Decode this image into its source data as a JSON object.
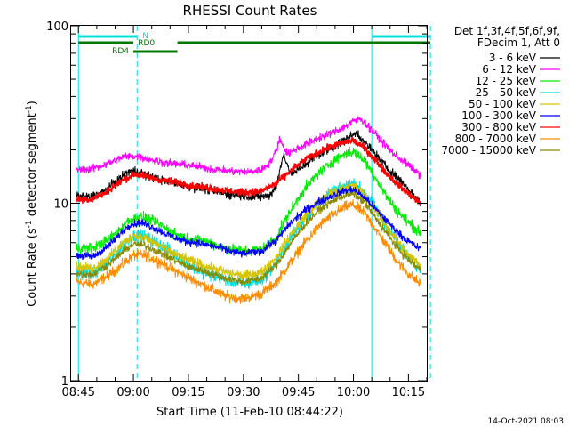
{
  "chart_data": {
    "type": "line",
    "title": "RHESSI Count Rates",
    "xlabel": "Start Time (11-Feb-10 08:44:22)",
    "ylabel": "Count Rate (s",
    "ylabel_sup1": "-1",
    "ylabel_mid": " detector segment",
    "ylabel_sup2": "-1",
    "ylabel_end": ")",
    "yscale": "log",
    "ylim": [
      1,
      100
    ],
    "xlim_minutes": [
      -2,
      95
    ],
    "x_ticks": [
      {
        "t": 0,
        "label": "08:45"
      },
      {
        "t": 15,
        "label": "09:00"
      },
      {
        "t": 30,
        "label": "09:15"
      },
      {
        "t": 45,
        "label": "09:30"
      },
      {
        "t": 60,
        "label": "09:45"
      },
      {
        "t": 75,
        "label": "10:00"
      },
      {
        "t": 90,
        "label": "10:15"
      }
    ],
    "y_ticks": [
      {
        "v": 1,
        "label": "1"
      },
      {
        "v": 10,
        "label": "10"
      },
      {
        "v": 100,
        "label": "100"
      }
    ],
    "legend_header_1": "Det 1f,3f,4f,5f,6f,9f,",
    "legend_header_2": "FDecim 1, Att 0",
    "timestamp": "14-Oct-2021 08:03",
    "series": [
      {
        "name": "3 - 6 keV",
        "color": "#000000",
        "noise": 0.05,
        "points": [
          [
            -0.5,
            11
          ],
          [
            3,
            10.8
          ],
          [
            7,
            11.6
          ],
          [
            10,
            13.2
          ],
          [
            14,
            15.2
          ],
          [
            17,
            15
          ],
          [
            20,
            14
          ],
          [
            24,
            13.3
          ],
          [
            27,
            13
          ],
          [
            30,
            12.4
          ],
          [
            35,
            12
          ],
          [
            40,
            11.3
          ],
          [
            45,
            11
          ],
          [
            48,
            10.8
          ],
          [
            52,
            11
          ],
          [
            54,
            12.5
          ],
          [
            56,
            19
          ],
          [
            58,
            14.5
          ],
          [
            61,
            16
          ],
          [
            64,
            18
          ],
          [
            67,
            19.5
          ],
          [
            70,
            21
          ],
          [
            73,
            23
          ],
          [
            76,
            25
          ],
          [
            78,
            22
          ],
          [
            81,
            19
          ],
          [
            84,
            16
          ],
          [
            87,
            14
          ],
          [
            90,
            12
          ],
          [
            93.3,
            10
          ]
        ]
      },
      {
        "name": "6 - 12 keV",
        "color": "#ff00ff",
        "noise": 0.045,
        "points": [
          [
            -0.5,
            15.5
          ],
          [
            3,
            15.5
          ],
          [
            6,
            16.2
          ],
          [
            9,
            17
          ],
          [
            12,
            18.2
          ],
          [
            15,
            18.5
          ],
          [
            19,
            17.8
          ],
          [
            23,
            17
          ],
          [
            27,
            16.6
          ],
          [
            31,
            16.3
          ],
          [
            36,
            15.6
          ],
          [
            41,
            15.2
          ],
          [
            46,
            15
          ],
          [
            50,
            15.4
          ],
          [
            53,
            17.8
          ],
          [
            55,
            23
          ],
          [
            57,
            19
          ],
          [
            61,
            21
          ],
          [
            65,
            23
          ],
          [
            69,
            25
          ],
          [
            72,
            26.5
          ],
          [
            75,
            29
          ],
          [
            77,
            30
          ],
          [
            80,
            26
          ],
          [
            83,
            22
          ],
          [
            86,
            19
          ],
          [
            89,
            17
          ],
          [
            93.3,
            14.5
          ]
        ]
      },
      {
        "name": "12 - 25 keV",
        "color": "#00ee00",
        "noise": 0.06,
        "points": [
          [
            -0.5,
            5.6
          ],
          [
            4,
            5.6
          ],
          [
            8,
            6.2
          ],
          [
            11,
            7
          ],
          [
            13,
            7.8
          ],
          [
            16,
            8.4
          ],
          [
            19,
            8.2
          ],
          [
            22,
            7.6
          ],
          [
            26,
            6.8
          ],
          [
            30,
            6.3
          ],
          [
            35,
            6.1
          ],
          [
            40,
            5.6
          ],
          [
            45,
            5.4
          ],
          [
            50,
            5.5
          ],
          [
            54,
            6.4
          ],
          [
            57,
            8.5
          ],
          [
            61,
            11.5
          ],
          [
            65,
            14.5
          ],
          [
            69,
            17
          ],
          [
            72,
            18.8
          ],
          [
            75,
            19.5
          ],
          [
            78,
            17.5
          ],
          [
            81,
            14
          ],
          [
            84,
            11
          ],
          [
            87,
            9
          ],
          [
            90,
            7.8
          ],
          [
            93.3,
            6.8
          ]
        ]
      },
      {
        "name": "25 - 50 keV",
        "color": "#00e0e0",
        "noise": 0.07,
        "points": [
          [
            -0.5,
            4.1
          ],
          [
            4,
            4.0
          ],
          [
            8,
            4.6
          ],
          [
            12,
            5.7
          ],
          [
            15,
            6.6
          ],
          [
            18,
            6.5
          ],
          [
            22,
            5.9
          ],
          [
            26,
            5.2
          ],
          [
            30,
            4.5
          ],
          [
            35,
            4.0
          ],
          [
            40,
            3.7
          ],
          [
            45,
            3.5
          ],
          [
            50,
            3.7
          ],
          [
            54,
            4.6
          ],
          [
            58,
            6.4
          ],
          [
            62,
            8.4
          ],
          [
            66,
            10.3
          ],
          [
            70,
            11.8
          ],
          [
            73,
            12.6
          ],
          [
            75,
            13
          ],
          [
            78,
            11.6
          ],
          [
            81,
            9.4
          ],
          [
            84,
            7.4
          ],
          [
            87,
            6
          ],
          [
            90,
            5
          ],
          [
            93.3,
            4.3
          ]
        ]
      },
      {
        "name": "50 - 100 keV",
        "color": "#d6c400",
        "noise": 0.055,
        "points": [
          [
            -0.5,
            4.4
          ],
          [
            4,
            4.3
          ],
          [
            8,
            4.9
          ],
          [
            12,
            5.9
          ],
          [
            15,
            6.6
          ],
          [
            18,
            6.4
          ],
          [
            22,
            5.8
          ],
          [
            26,
            5.2
          ],
          [
            30,
            4.8
          ],
          [
            35,
            4.4
          ],
          [
            40,
            4.1
          ],
          [
            45,
            3.9
          ],
          [
            50,
            4.1
          ],
          [
            54,
            5
          ],
          [
            58,
            6.7
          ],
          [
            62,
            8.6
          ],
          [
            66,
            10.4
          ],
          [
            70,
            11.7
          ],
          [
            73,
            12.3
          ],
          [
            75,
            12.5
          ],
          [
            78,
            11.2
          ],
          [
            81,
            9.2
          ],
          [
            84,
            7.4
          ],
          [
            87,
            6.1
          ],
          [
            90,
            5.1
          ],
          [
            93.3,
            4.5
          ]
        ]
      },
      {
        "name": "100 - 300 keV",
        "color": "#0000ff",
        "noise": 0.045,
        "points": [
          [
            -0.5,
            5.1
          ],
          [
            4,
            5.0
          ],
          [
            8,
            5.7
          ],
          [
            11,
            6.6
          ],
          [
            14,
            7.6
          ],
          [
            17,
            7.8
          ],
          [
            20,
            7.4
          ],
          [
            24,
            6.7
          ],
          [
            28,
            6.2
          ],
          [
            32,
            6.0
          ],
          [
            36,
            5.8
          ],
          [
            41,
            5.4
          ],
          [
            45,
            5.2
          ],
          [
            50,
            5.4
          ],
          [
            54,
            6.2
          ],
          [
            58,
            7.8
          ],
          [
            62,
            9.2
          ],
          [
            66,
            10.3
          ],
          [
            70,
            11.2
          ],
          [
            73,
            11.8
          ],
          [
            75,
            12
          ],
          [
            78,
            10.8
          ],
          [
            81,
            9.3
          ],
          [
            84,
            8
          ],
          [
            87,
            6.9
          ],
          [
            90,
            6.1
          ],
          [
            93.3,
            5.5
          ]
        ]
      },
      {
        "name": "300 - 800 keV",
        "color": "#ff0000",
        "noise": 0.04,
        "points": [
          [
            -0.5,
            10.5
          ],
          [
            3,
            10.5
          ],
          [
            7,
            11.3
          ],
          [
            10,
            12.6
          ],
          [
            13,
            13.8
          ],
          [
            15,
            14.5
          ],
          [
            17,
            14.4
          ],
          [
            19,
            14
          ],
          [
            22,
            13.6
          ],
          [
            26,
            13.2
          ],
          [
            30,
            12.7
          ],
          [
            35,
            12.2
          ],
          [
            40,
            11.8
          ],
          [
            45,
            11.5
          ],
          [
            50,
            11.7
          ],
          [
            54,
            13
          ],
          [
            58,
            15.3
          ],
          [
            62,
            17.7
          ],
          [
            66,
            19.6
          ],
          [
            70,
            21.3
          ],
          [
            73,
            22.3
          ],
          [
            75,
            22.6
          ],
          [
            78,
            20.5
          ],
          [
            81,
            17.5
          ],
          [
            84,
            14.8
          ],
          [
            87,
            12.8
          ],
          [
            90,
            11.3
          ],
          [
            93.3,
            10
          ]
        ]
      },
      {
        "name": "800 - 7000 keV",
        "color": "#ff8c00",
        "noise": 0.06,
        "points": [
          [
            -0.5,
            3.6
          ],
          [
            4,
            3.5
          ],
          [
            8,
            3.9
          ],
          [
            12,
            4.5
          ],
          [
            15,
            5.1
          ],
          [
            18,
            5.1
          ],
          [
            22,
            4.7
          ],
          [
            26,
            4.2
          ],
          [
            30,
            3.8
          ],
          [
            35,
            3.4
          ],
          [
            40,
            3.0
          ],
          [
            45,
            2.9
          ],
          [
            50,
            3.1
          ],
          [
            54,
            3.6
          ],
          [
            58,
            4.7
          ],
          [
            62,
            6.1
          ],
          [
            66,
            7.6
          ],
          [
            70,
            8.8
          ],
          [
            73,
            9.6
          ],
          [
            75,
            9.8
          ],
          [
            78,
            8.8
          ],
          [
            81,
            7.2
          ],
          [
            84,
            5.8
          ],
          [
            87,
            4.7
          ],
          [
            90,
            4
          ],
          [
            93.3,
            3.5
          ]
        ]
      },
      {
        "name": "7000 - 15000 keV",
        "color": "#8b8b00",
        "noise": 0.045,
        "points": [
          [
            -0.5,
            4.0
          ],
          [
            4,
            4.0
          ],
          [
            8,
            4.5
          ],
          [
            12,
            5.3
          ],
          [
            15,
            5.9
          ],
          [
            18,
            5.8
          ],
          [
            22,
            5.3
          ],
          [
            26,
            4.8
          ],
          [
            30,
            4.4
          ],
          [
            35,
            4.1
          ],
          [
            40,
            3.8
          ],
          [
            45,
            3.6
          ],
          [
            50,
            3.8
          ],
          [
            54,
            4.5
          ],
          [
            58,
            6
          ],
          [
            62,
            7.7
          ],
          [
            66,
            9.3
          ],
          [
            70,
            10.5
          ],
          [
            73,
            11.1
          ],
          [
            75,
            11.3
          ],
          [
            78,
            10.1
          ],
          [
            81,
            8.3
          ],
          [
            84,
            6.8
          ],
          [
            87,
            5.6
          ],
          [
            90,
            4.8
          ],
          [
            93.3,
            4.2
          ]
        ]
      }
    ],
    "markers": {
      "solid_times": [
        0,
        80
      ],
      "dashed_times": [
        16,
        96
      ],
      "top_band_color": "#00e0e0",
      "segment_color": "#007700"
    },
    "bars": [
      {
        "label": "N",
        "color": "#00e0e0",
        "spans": [
          [
            0,
            16
          ],
          [
            80,
            96
          ]
        ]
      },
      {
        "label": "RD0",
        "color": "#007700",
        "spans": [
          [
            0,
            15
          ],
          [
            27,
            96
          ]
        ]
      },
      {
        "label": "RD4",
        "color": "#007700",
        "spans": [
          [
            15,
            27
          ]
        ]
      }
    ]
  }
}
